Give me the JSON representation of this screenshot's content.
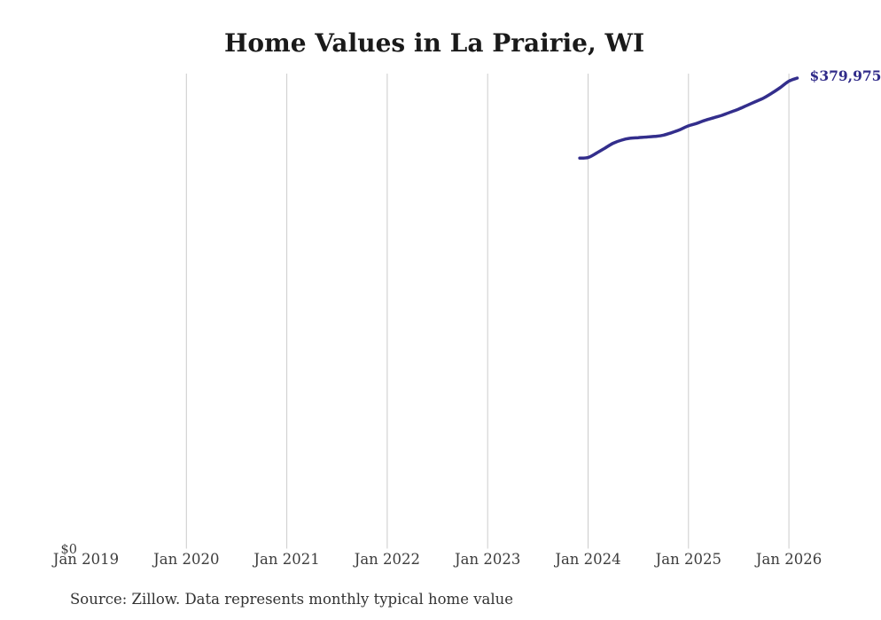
{
  "page": {
    "title": "Home Values in La Prairie, WI",
    "source_note": "Source: Zillow. Data represents monthly typical home value"
  },
  "axis": {
    "y_zero_label": "$0"
  },
  "latest_value_label": "$379,975",
  "colors": {
    "background": "#ffffff",
    "title_text": "#1a1a1a",
    "axis_text": "#3d3d3d",
    "source_text": "#333333",
    "gridline": "#cccccc",
    "line": "#332e8c",
    "value_label": "#302b89"
  },
  "chart_data": {
    "type": "line",
    "title": "Home Values in La Prairie, WI",
    "xlabel": "",
    "ylabel": "",
    "x_tick_labels": [
      "Jan 2019",
      "Jan 2020",
      "Jan 2021",
      "Jan 2022",
      "Jan 2023",
      "Jan 2024",
      "Jan 2025",
      "Jan 2026"
    ],
    "grid": "vertical-only",
    "gridline_on_first_tick": false,
    "ylim": [
      0,
      385000
    ],
    "x": [
      "2023-12",
      "2024-01",
      "2024-02",
      "2024-03",
      "2024-04",
      "2024-05",
      "2024-06",
      "2024-07",
      "2024-08",
      "2024-09",
      "2024-10",
      "2024-11",
      "2024-12",
      "2025-01",
      "2025-02",
      "2025-03",
      "2025-04",
      "2025-05",
      "2025-06",
      "2025-07",
      "2025-08",
      "2025-09",
      "2025-10",
      "2025-11",
      "2025-12",
      "2026-01",
      "2026-02"
    ],
    "series": [
      {
        "name": "Monthly typical home value",
        "values": [
          315500,
          316000,
          319500,
          323500,
          327500,
          330000,
          331500,
          332000,
          332500,
          333000,
          334000,
          336000,
          338500,
          341500,
          343500,
          346000,
          348000,
          350000,
          352500,
          355000,
          358000,
          361000,
          364000,
          368000,
          372500,
          377500,
          379975
        ]
      }
    ],
    "latest_point": {
      "date": "2026-02",
      "value": 379975,
      "label": "$379,975"
    },
    "legend": "none"
  }
}
